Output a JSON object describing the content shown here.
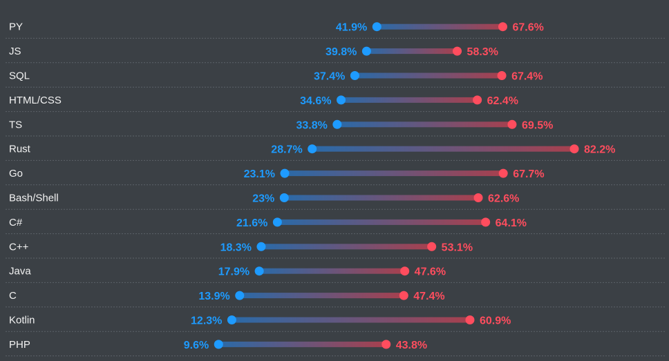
{
  "chart_data": {
    "type": "dumbbell",
    "value_unit": "%",
    "series": [
      {
        "name": "",
        "color": "#1e9bff",
        "values": [
          41.9,
          39.8,
          37.4,
          34.6,
          33.8,
          28.7,
          23.1,
          23,
          21.6,
          18.3,
          17.9,
          13.9,
          12.3,
          9.6
        ]
      },
      {
        "name": "",
        "color": "#ff4d5e",
        "values": [
          67.6,
          58.3,
          67.4,
          62.4,
          69.5,
          82.2,
          67.7,
          62.6,
          64.1,
          53.1,
          47.6,
          47.4,
          60.9,
          43.8
        ]
      }
    ],
    "categories": [
      "PY",
      "JS",
      "SQL",
      "HTML/CSS",
      "TS",
      "Rust",
      "Go",
      "Bash/Shell",
      "C#",
      "C++",
      "Java",
      "C",
      "Kotlin",
      "PHP"
    ],
    "value_labels_a": [
      "41.9%",
      "39.8%",
      "37.4%",
      "34.6%",
      "33.8%",
      "28.7%",
      "23.1%",
      "23%",
      "21.6%",
      "18.3%",
      "17.9%",
      "13.9%",
      "12.3%",
      "9.6%"
    ],
    "value_labels_b": [
      "67.6%",
      "58.3%",
      "67.4%",
      "62.4%",
      "69.5%",
      "82.2%",
      "67.7%",
      "62.6%",
      "64.1%",
      "53.1%",
      "47.6%",
      "47.4%",
      "60.9%",
      "43.8%"
    ],
    "title": "",
    "xlabel": "",
    "ylabel": "",
    "grid": "dashed row dividers"
  }
}
